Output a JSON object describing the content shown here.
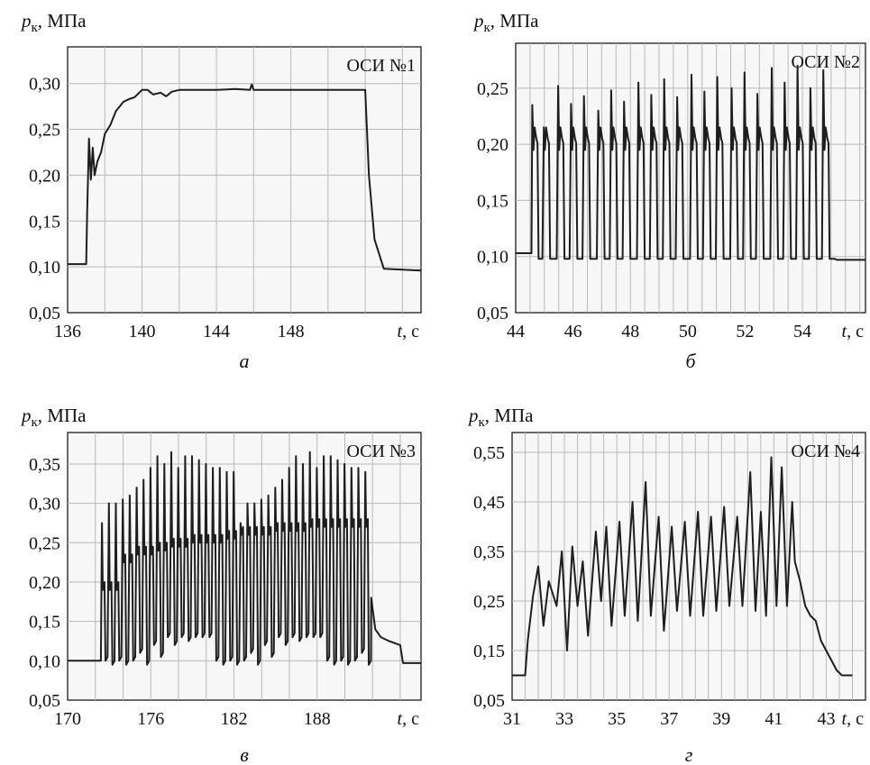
{
  "chart_data": [
    {
      "type": "line",
      "panel_letter": "а",
      "series_name": "ОСИ №1",
      "ylabel": "pк, МПа",
      "ylabel_symbol": "p",
      "ylabel_sub": "к",
      "ylabel_unit": ", МПа",
      "xlabel": "t, с",
      "xlabel_symbol": "t",
      "xlabel_unit": ", с",
      "xlim": [
        136,
        155
      ],
      "ylim": [
        0.05,
        0.34
      ],
      "xticks": [
        136,
        140,
        144,
        148
      ],
      "xtick_labels": [
        "136",
        "140",
        "144",
        "148"
      ],
      "yticks": [
        0.05,
        0.1,
        0.15,
        0.2,
        0.25,
        0.3
      ],
      "ytick_labels": [
        "0,05",
        "0,10",
        "0,15",
        "0,20",
        "0,25",
        "0,30"
      ],
      "grid": true,
      "x": [
        136.0,
        137.0,
        137.05,
        137.15,
        137.25,
        137.35,
        137.45,
        137.6,
        137.8,
        138.0,
        138.3,
        138.6,
        139.0,
        139.3,
        139.6,
        140.0,
        140.3,
        140.6,
        141.0,
        141.3,
        141.6,
        142.0,
        143.0,
        144.0,
        145.0,
        145.8,
        145.9,
        146.0,
        148.0,
        150.0,
        151.5,
        152.0,
        152.2,
        152.5,
        153.0,
        155.0
      ],
      "y": [
        0.103,
        0.103,
        0.16,
        0.24,
        0.195,
        0.23,
        0.2,
        0.215,
        0.225,
        0.245,
        0.255,
        0.27,
        0.28,
        0.283,
        0.285,
        0.293,
        0.293,
        0.288,
        0.29,
        0.286,
        0.291,
        0.293,
        0.293,
        0.293,
        0.294,
        0.293,
        0.299,
        0.293,
        0.293,
        0.293,
        0.293,
        0.293,
        0.2,
        0.13,
        0.098,
        0.096
      ]
    },
    {
      "type": "line",
      "panel_letter": "б",
      "series_name": "ОСИ №2",
      "ylabel": "pк, МПа",
      "ylabel_symbol": "p",
      "ylabel_sub": "к",
      "ylabel_unit": ", МПа",
      "xlabel": "t, с",
      "xlabel_symbol": "t",
      "xlabel_unit": ", с",
      "xlim": [
        44,
        56.2
      ],
      "ylim": [
        0.05,
        0.29
      ],
      "xticks": [
        44,
        46,
        48,
        50,
        52,
        54
      ],
      "xtick_labels": [
        "44",
        "46",
        "48",
        "50",
        "52",
        "54"
      ],
      "yticks": [
        0.05,
        0.1,
        0.15,
        0.2,
        0.25
      ],
      "ytick_labels": [
        "0,05",
        "0,10",
        "0,15",
        "0,20",
        "0,25"
      ],
      "grid": true,
      "baseline_start": [
        44.0,
        44.55,
        0.103
      ],
      "baseline_end": [
        55.15,
        56.2,
        0.097
      ],
      "pulse_starts": [
        44.55,
        44.95,
        45.45,
        45.9,
        46.35,
        46.85,
        47.3,
        47.75,
        48.25,
        48.7,
        49.15,
        49.6,
        50.1,
        50.55,
        51.0,
        51.5,
        51.95,
        52.4,
        52.9,
        53.35,
        53.8,
        54.25,
        54.7
      ],
      "pulse_peaks": [
        0.235,
        0.215,
        0.252,
        0.236,
        0.243,
        0.23,
        0.248,
        0.238,
        0.255,
        0.244,
        0.258,
        0.242,
        0.262,
        0.247,
        0.26,
        0.25,
        0.264,
        0.245,
        0.268,
        0.255,
        0.27,
        0.25,
        0.266
      ],
      "pulse_plateau": 0.205,
      "pulse_floor": 0.098
    },
    {
      "type": "line",
      "panel_letter": "в",
      "series_name": "ОСИ №3",
      "ylabel": "pк, МПа",
      "ylabel_symbol": "p",
      "ylabel_sub": "к",
      "ylabel_unit": ", МПа",
      "xlabel": "t, с",
      "xlabel_symbol": "t",
      "xlabel_unit": ", с",
      "xlim": [
        170,
        195.5
      ],
      "ylim": [
        0.05,
        0.39
      ],
      "xticks": [
        170,
        176,
        182,
        188
      ],
      "xtick_labels": [
        "170",
        "176",
        "182",
        "188"
      ],
      "yticks": [
        0.05,
        0.1,
        0.15,
        0.2,
        0.25,
        0.3,
        0.35
      ],
      "ytick_labels": [
        "0,05",
        "0,10",
        "0,15",
        "0,20",
        "0,25",
        "0,30",
        "0,35"
      ],
      "grid": true,
      "baseline_start": [
        170.0,
        172.4,
        0.1
      ],
      "tail": {
        "x": [
          191.9,
          192.2,
          192.6,
          193.2,
          194.0,
          194.2,
          195.5
        ],
        "y": [
          0.18,
          0.14,
          0.13,
          0.125,
          0.12,
          0.097,
          0.097
        ]
      },
      "pulse_period": 0.5,
      "pulse_count": 39,
      "pulse_base_peaks": [
        0.2,
        0.235,
        0.245,
        0.25,
        0.255,
        0.26,
        0.26,
        0.265,
        0.27,
        0.27,
        0.275,
        0.275,
        0.28,
        0.28,
        0.28,
        0.28
      ],
      "pulse_spike_peaks": [
        0.275,
        0.3,
        0.3,
        0.305,
        0.31,
        0.32,
        0.33,
        0.345,
        0.36,
        0.35,
        0.365,
        0.345,
        0.36,
        0.36,
        0.355,
        0.35,
        0.345,
        0.345,
        0.34,
        0.34
      ],
      "pulse_floors": [
        0.1,
        0.095,
        0.1,
        0.095,
        0.1,
        0.11,
        0.095,
        0.12,
        0.105,
        0.13,
        0.12,
        0.13,
        0.125,
        0.13,
        0.13,
        0.13
      ]
    },
    {
      "type": "line",
      "panel_letter": "г",
      "series_name": "ОСИ №4",
      "ylabel": "pк, МПа",
      "ylabel_symbol": "p",
      "ylabel_sub": "к",
      "ylabel_unit": ", МПа",
      "xlabel": "t, с",
      "xlabel_symbol": "t",
      "xlabel_unit": ", с",
      "xlim": [
        31,
        44.5
      ],
      "ylim": [
        0.05,
        0.59
      ],
      "xticks": [
        31,
        33,
        35,
        37,
        39,
        41,
        43
      ],
      "xtick_labels": [
        "31",
        "33",
        "35",
        "37",
        "39",
        "41",
        "43"
      ],
      "yticks": [
        0.05,
        0.15,
        0.25,
        0.35,
        0.45,
        0.55
      ],
      "ytick_labels": [
        "0,05",
        "0,15",
        "0,25",
        "0,35",
        "0,45",
        "0,55"
      ],
      "grid": true,
      "x": [
        31.0,
        31.5,
        31.6,
        31.8,
        32.0,
        32.2,
        32.4,
        32.7,
        32.9,
        33.1,
        33.3,
        33.5,
        33.7,
        33.9,
        34.2,
        34.4,
        34.6,
        34.8,
        35.1,
        35.3,
        35.6,
        35.8,
        36.1,
        36.3,
        36.6,
        36.8,
        37.1,
        37.3,
        37.6,
        37.8,
        38.1,
        38.3,
        38.6,
        38.8,
        39.1,
        39.3,
        39.6,
        39.8,
        40.1,
        40.3,
        40.5,
        40.7,
        40.9,
        41.1,
        41.3,
        41.5,
        41.7,
        41.8,
        42.0,
        42.2,
        42.4,
        42.6,
        42.8,
        43.0,
        43.2,
        43.4,
        43.6,
        44.0
      ],
      "y": [
        0.1,
        0.1,
        0.17,
        0.26,
        0.32,
        0.2,
        0.29,
        0.24,
        0.35,
        0.15,
        0.36,
        0.24,
        0.33,
        0.18,
        0.39,
        0.25,
        0.4,
        0.2,
        0.41,
        0.22,
        0.45,
        0.21,
        0.49,
        0.22,
        0.42,
        0.19,
        0.4,
        0.23,
        0.41,
        0.22,
        0.43,
        0.22,
        0.42,
        0.23,
        0.44,
        0.24,
        0.42,
        0.24,
        0.51,
        0.23,
        0.43,
        0.22,
        0.54,
        0.24,
        0.52,
        0.24,
        0.45,
        0.33,
        0.29,
        0.24,
        0.22,
        0.21,
        0.17,
        0.15,
        0.13,
        0.11,
        0.1,
        0.1
      ]
    }
  ]
}
